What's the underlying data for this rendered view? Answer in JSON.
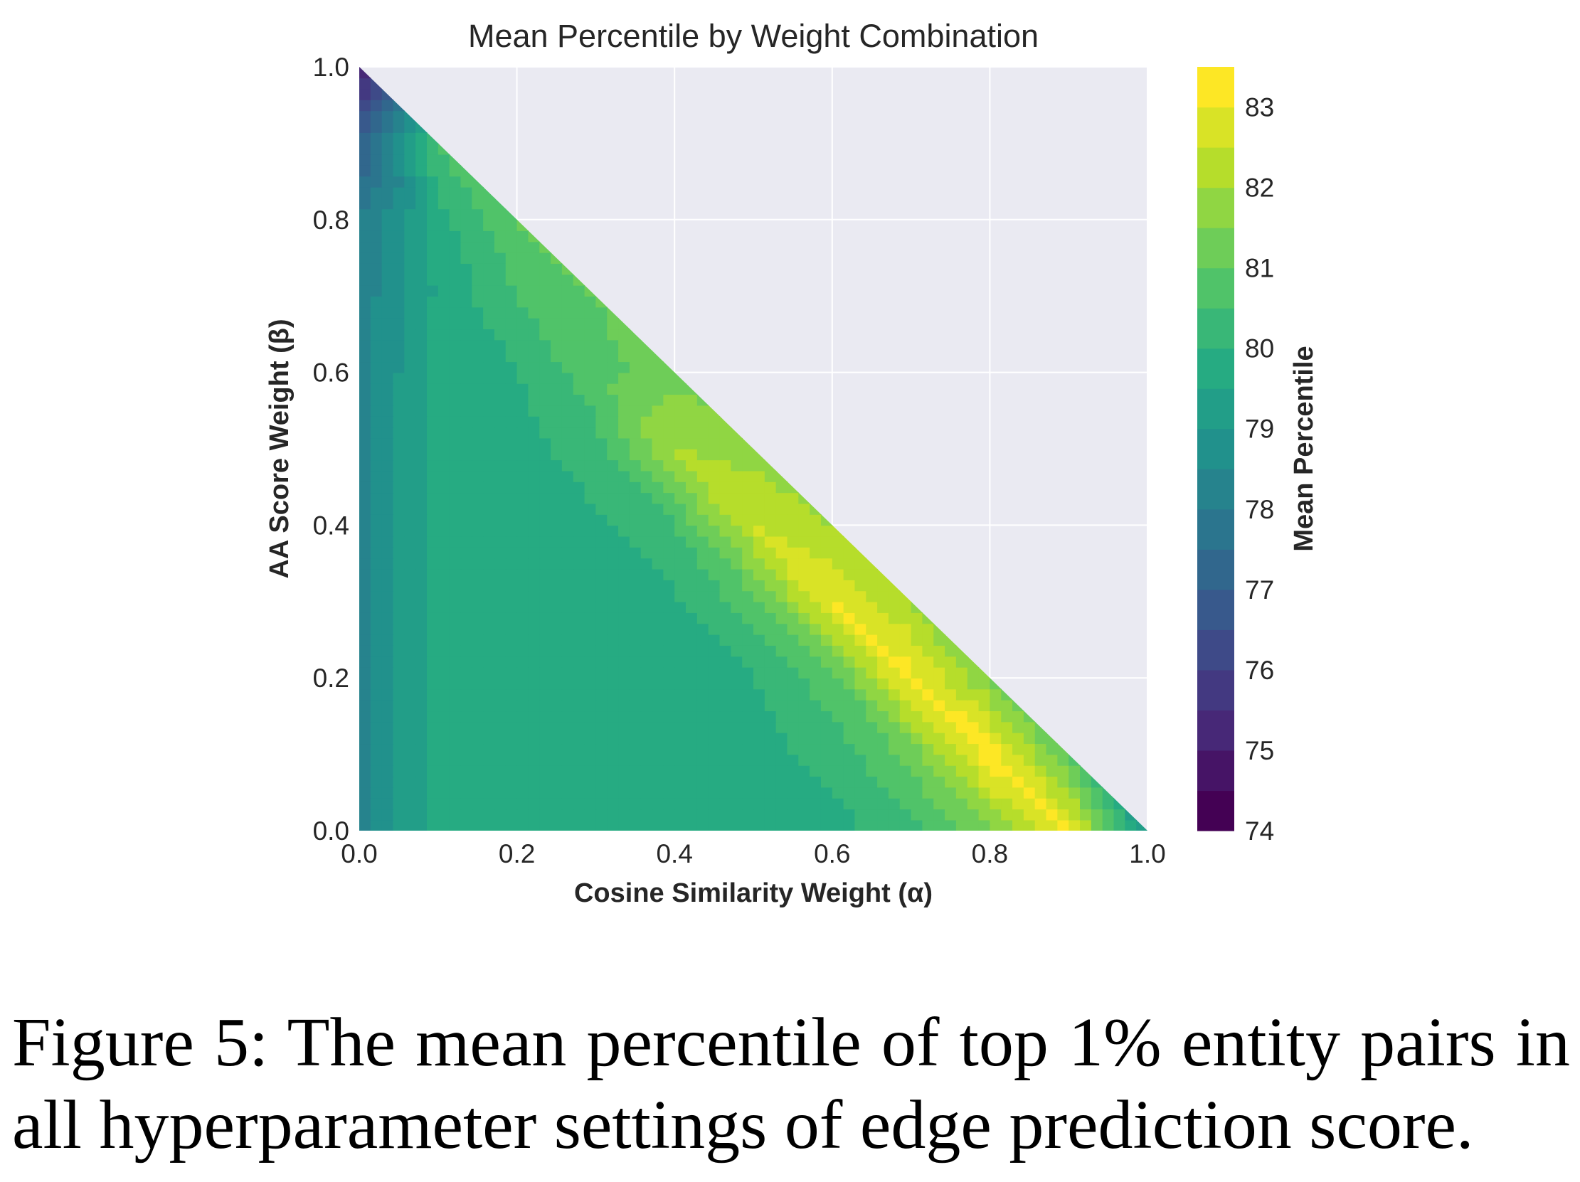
{
  "chart_data": {
    "type": "heatmap",
    "subtype": "filled-contour",
    "title": "Mean Percentile by Weight Combination",
    "xlabel": "Cosine Similarity Weight (α)",
    "ylabel": "AA Score Weight (β)",
    "xlim": [
      0,
      1
    ],
    "ylim": [
      0,
      1
    ],
    "grid": true,
    "x_ticks": [
      "0.0",
      "0.2",
      "0.4",
      "0.6",
      "0.8",
      "1.0"
    ],
    "y_ticks": [
      "0.0",
      "0.2",
      "0.4",
      "0.6",
      "0.8",
      "1.0"
    ],
    "colormap": "viridis",
    "background_color": "#eaeaf2",
    "colorbar": {
      "label": "Mean Percentile",
      "range": [
        74,
        83.5
      ],
      "level_step": 0.5,
      "ticks": [
        "74",
        "75",
        "76",
        "77",
        "78",
        "79",
        "80",
        "81",
        "82",
        "83"
      ]
    },
    "grid_step": 0.1,
    "rows_by_beta": [
      {
        "beta": 0.0,
        "values": [
          78.3,
          79.7,
          79.8,
          79.8,
          79.8,
          79.8,
          79.8,
          80.3,
          81.5,
          83.0,
          79.0
        ]
      },
      {
        "beta": 0.1,
        "values": [
          78.3,
          79.7,
          79.8,
          79.8,
          79.8,
          79.8,
          80.2,
          81.2,
          83.3,
          81.0
        ]
      },
      {
        "beta": 0.2,
        "values": [
          78.3,
          79.7,
          79.8,
          79.8,
          79.8,
          80.0,
          80.8,
          83.2,
          81.5
        ]
      },
      {
        "beta": 0.3,
        "values": [
          78.3,
          79.7,
          79.8,
          79.8,
          79.9,
          80.8,
          83.0,
          82.0
        ]
      },
      {
        "beta": 0.4,
        "values": [
          78.3,
          79.7,
          79.8,
          79.9,
          80.5,
          82.5,
          82.0
        ]
      },
      {
        "beta": 0.5,
        "values": [
          78.3,
          79.7,
          79.8,
          80.3,
          82.0,
          81.8
        ]
      },
      {
        "beta": 0.6,
        "values": [
          78.3,
          79.7,
          80.0,
          80.8,
          81.3
        ]
      },
      {
        "beta": 0.7,
        "values": [
          78.2,
          79.6,
          80.5,
          81.0
        ]
      },
      {
        "beta": 0.8,
        "values": [
          78.0,
          79.8,
          81.0
        ]
      },
      {
        "beta": 0.9,
        "values": [
          77.0,
          80.5
        ]
      },
      {
        "beta": 1.0,
        "values": [
          75.0
        ]
      }
    ]
  },
  "caption": {
    "line1": "Figure 5: The mean percentile of top 1% entity pairs in",
    "line2": "all hyperparameter settings of edge prediction score."
  }
}
